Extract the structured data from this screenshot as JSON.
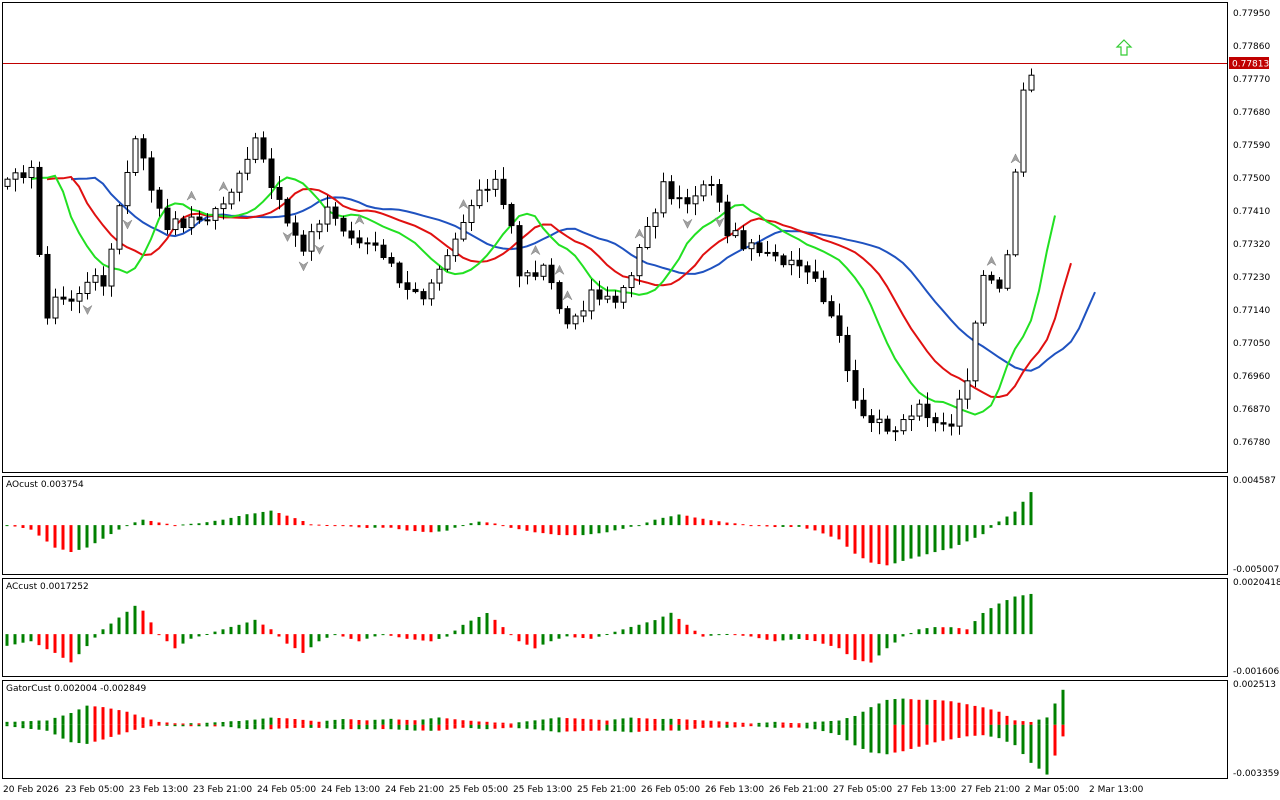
{
  "colors": {
    "background": "#ffffff",
    "frame": "#000000",
    "bull_body": "#ffffff",
    "bear_body": "#000000",
    "jaw": "#1f52c0",
    "teeth": "#e01010",
    "lips": "#22e022",
    "current_price_line": "#c00000",
    "current_price_tag": "#c00000",
    "histogram_up": "#008000",
    "histogram_down": "#ff0000",
    "buy_arrow": "#33cc33",
    "fractal": "#a0a0a0"
  },
  "price_axis": {
    "ticks": [
      "0.77950",
      "0.77860",
      "0.77770",
      "0.77680",
      "0.77590",
      "0.77500",
      "0.77410",
      "0.77320",
      "0.77230",
      "0.77140",
      "0.77050",
      "0.76960",
      "0.76870",
      "0.76780"
    ],
    "current_price": "0.77813"
  },
  "time_axis": {
    "labels": [
      "20 Feb 2026",
      "23 Feb 05:00",
      "23 Feb 13:00",
      "23 Feb 21:00",
      "24 Feb 05:00",
      "24 Feb 13:00",
      "24 Feb 21:00",
      "25 Feb 05:00",
      "25 Feb 13:00",
      "25 Feb 21:00",
      "26 Feb 05:00",
      "26 Feb 13:00",
      "26 Feb 21:00",
      "27 Feb 05:00",
      "27 Feb 13:00",
      "27 Feb 21:00",
      "2 Mar 05:00",
      "2 Mar 13:00"
    ]
  },
  "panels": {
    "ao": {
      "label": "AOcust 0.003754",
      "max": "0.004587",
      "min": "-0.005007"
    },
    "ac": {
      "label": "ACcust 0.0017252",
      "max": "0.0020418",
      "min": "-0.0016063"
    },
    "gator": {
      "label": "GatorCust 0.002004 -0.002849",
      "max": "0.002513",
      "min": "-0.003359"
    }
  },
  "chart_data": [
    {
      "type": "candlestick",
      "ylim": [
        0.7672,
        0.78
      ],
      "bars": 140,
      "close_path": [
        [
          0,
          0.7751
        ],
        [
          3,
          0.7756
        ],
        [
          4,
          0.773
        ],
        [
          5,
          0.7715
        ],
        [
          6,
          0.772
        ],
        [
          8,
          0.7718
        ],
        [
          10,
          0.7725
        ],
        [
          12,
          0.7723
        ],
        [
          14,
          0.7745
        ],
        [
          16,
          0.7765
        ],
        [
          18,
          0.775
        ],
        [
          20,
          0.774
        ],
        [
          22,
          0.774
        ],
        [
          25,
          0.7742
        ],
        [
          28,
          0.7748
        ],
        [
          31,
          0.7765
        ],
        [
          34,
          0.7745
        ],
        [
          37,
          0.7732
        ],
        [
          40,
          0.7745
        ],
        [
          43,
          0.7735
        ],
        [
          46,
          0.7735
        ],
        [
          49,
          0.7725
        ],
        [
          52,
          0.7718
        ],
        [
          55,
          0.773
        ],
        [
          58,
          0.7745
        ],
        [
          61,
          0.7753
        ],
        [
          63,
          0.774
        ],
        [
          64,
          0.7725
        ],
        [
          67,
          0.7727
        ],
        [
          70,
          0.7712
        ],
        [
          73,
          0.772
        ],
        [
          76,
          0.7718
        ],
        [
          78,
          0.7727
        ],
        [
          80,
          0.7738
        ],
        [
          82,
          0.775
        ],
        [
          85,
          0.7745
        ],
        [
          88,
          0.7752
        ],
        [
          90,
          0.7738
        ],
        [
          93,
          0.7733
        ],
        [
          96,
          0.773
        ],
        [
          99,
          0.773
        ],
        [
          101,
          0.7725
        ],
        [
          104,
          0.771
        ],
        [
          106,
          0.769
        ],
        [
          108,
          0.7686
        ],
        [
          110,
          0.7682
        ],
        [
          112,
          0.7686
        ],
        [
          114,
          0.769
        ],
        [
          116,
          0.7683
        ],
        [
          118,
          0.7684
        ],
        [
          120,
          0.7697
        ],
        [
          122,
          0.7725
        ],
        [
          124,
          0.7723
        ],
        [
          125,
          0.7732
        ],
        [
          126,
          0.7756
        ],
        [
          127,
          0.7776
        ],
        [
          128,
          0.7781
        ]
      ]
    },
    {
      "type": "histogram",
      "name": "AOcust",
      "ylim": [
        -0.005007,
        0.004587
      ],
      "path": [
        [
          0,
          0.0
        ],
        [
          3,
          -0.0005
        ],
        [
          6,
          -0.0025
        ],
        [
          8,
          -0.003
        ],
        [
          10,
          -0.0025
        ],
        [
          13,
          -0.001
        ],
        [
          15,
          0.0
        ],
        [
          17,
          0.0006
        ],
        [
          19,
          0.0003
        ],
        [
          21,
          0.0
        ],
        [
          24,
          0.0002
        ],
        [
          27,
          0.0006
        ],
        [
          30,
          0.0012
        ],
        [
          33,
          0.0016
        ],
        [
          36,
          0.0008
        ],
        [
          38,
          0.0001
        ],
        [
          42,
          -0.0001
        ],
        [
          45,
          -0.0003
        ],
        [
          48,
          -0.0003
        ],
        [
          50,
          -0.0006
        ],
        [
          53,
          -0.0008
        ],
        [
          55,
          -0.0006
        ],
        [
          57,
          0.0
        ],
        [
          59,
          0.0004
        ],
        [
          61,
          0.0002
        ],
        [
          63,
          -0.0003
        ],
        [
          66,
          -0.0008
        ],
        [
          69,
          -0.0011
        ],
        [
          72,
          -0.0011
        ],
        [
          75,
          -0.0008
        ],
        [
          77,
          -0.0004
        ],
        [
          79,
          0.0
        ],
        [
          81,
          0.0006
        ],
        [
          84,
          0.0012
        ],
        [
          87,
          0.0007
        ],
        [
          90,
          0.0003
        ],
        [
          93,
          0.0
        ],
        [
          96,
          -0.0002
        ],
        [
          99,
          -0.0002
        ],
        [
          101,
          -0.0006
        ],
        [
          104,
          -0.0016
        ],
        [
          106,
          -0.0032
        ],
        [
          108,
          -0.0042
        ],
        [
          110,
          -0.0045
        ],
        [
          112,
          -0.004
        ],
        [
          114,
          -0.0035
        ],
        [
          116,
          -0.003
        ],
        [
          118,
          -0.0026
        ],
        [
          120,
          -0.0018
        ],
        [
          122,
          -0.001
        ],
        [
          124,
          0.0004
        ],
        [
          126,
          0.0015
        ],
        [
          128,
          0.0037
        ]
      ]
    },
    {
      "type": "histogram",
      "name": "ACcust",
      "ylim": [
        -0.0016063,
        0.0020418
      ],
      "path": [
        [
          0,
          -0.0005
        ],
        [
          3,
          -0.0003
        ],
        [
          6,
          -0.0008
        ],
        [
          8,
          -0.0012
        ],
        [
          10,
          -0.0005
        ],
        [
          12,
          0.0002
        ],
        [
          14,
          0.0007
        ],
        [
          16,
          0.0012
        ],
        [
          17,
          0.001
        ],
        [
          19,
          0.0
        ],
        [
          21,
          -0.0006
        ],
        [
          23,
          -0.0002
        ],
        [
          25,
          0.0
        ],
        [
          28,
          0.0003
        ],
        [
          31,
          0.0006
        ],
        [
          33,
          0.0002
        ],
        [
          35,
          -0.0004
        ],
        [
          37,
          -0.0008
        ],
        [
          39,
          -0.0003
        ],
        [
          41,
          0.0
        ],
        [
          44,
          -0.0003
        ],
        [
          47,
          0.0
        ],
        [
          50,
          -0.0002
        ],
        [
          53,
          -0.0003
        ],
        [
          55,
          -0.0001
        ],
        [
          57,
          0.0004
        ],
        [
          60,
          0.0009
        ],
        [
          62,
          0.0003
        ],
        [
          64,
          -0.0003
        ],
        [
          66,
          -0.0006
        ],
        [
          68,
          -0.0003
        ],
        [
          70,
          -0.0001
        ],
        [
          73,
          -0.0002
        ],
        [
          75,
          0.0
        ],
        [
          78,
          0.0003
        ],
        [
          81,
          0.0006
        ],
        [
          83,
          0.0009
        ],
        [
          85,
          0.0004
        ],
        [
          87,
          -0.0001
        ],
        [
          90,
          0.0
        ],
        [
          93,
          -0.0001
        ],
        [
          96,
          -0.0003
        ],
        [
          99,
          -0.0002
        ],
        [
          101,
          -0.0003
        ],
        [
          104,
          -0.0006
        ],
        [
          106,
          -0.0011
        ],
        [
          108,
          -0.0012
        ],
        [
          110,
          -0.0006
        ],
        [
          112,
          -0.0001
        ],
        [
          114,
          0.0002
        ],
        [
          116,
          0.0003
        ],
        [
          118,
          0.0003
        ],
        [
          120,
          0.0002
        ],
        [
          122,
          0.0009
        ],
        [
          124,
          0.0013
        ],
        [
          126,
          0.0016
        ],
        [
          128,
          0.0017
        ]
      ]
    },
    {
      "type": "histogram",
      "name": "GatorCust",
      "ylim": [
        -0.003359,
        0.002513
      ],
      "upper_path": [
        [
          0,
          0.0002
        ],
        [
          5,
          0.0003
        ],
        [
          8,
          0.0008
        ],
        [
          10,
          0.0013
        ],
        [
          12,
          0.0012
        ],
        [
          15,
          0.0009
        ],
        [
          17,
          0.0005
        ],
        [
          19,
          0.0002
        ],
        [
          21,
          0.0001
        ],
        [
          24,
          0.0001
        ],
        [
          27,
          0.0002
        ],
        [
          30,
          0.0003
        ],
        [
          33,
          0.0005
        ],
        [
          36,
          0.0004
        ],
        [
          39,
          0.0002
        ],
        [
          42,
          0.0004
        ],
        [
          45,
          0.0003
        ],
        [
          48,
          0.0004
        ],
        [
          51,
          0.0003
        ],
        [
          54,
          0.0005
        ],
        [
          57,
          0.0003
        ],
        [
          60,
          0.0002
        ],
        [
          63,
          0.0001
        ],
        [
          66,
          0.0003
        ],
        [
          69,
          0.0005
        ],
        [
          72,
          0.0004
        ],
        [
          75,
          0.0003
        ],
        [
          78,
          0.0005
        ],
        [
          81,
          0.0004
        ],
        [
          84,
          0.0004
        ],
        [
          87,
          0.0003
        ],
        [
          90,
          0.0002
        ],
        [
          93,
          0.0001
        ],
        [
          96,
          0.0002
        ],
        [
          99,
          0.0001
        ],
        [
          101,
          0.0002
        ],
        [
          104,
          0.0003
        ],
        [
          106,
          0.0006
        ],
        [
          108,
          0.0012
        ],
        [
          110,
          0.0017
        ],
        [
          112,
          0.0018
        ],
        [
          114,
          0.0017
        ],
        [
          116,
          0.0017
        ],
        [
          118,
          0.0016
        ],
        [
          120,
          0.0014
        ],
        [
          122,
          0.0012
        ],
        [
          124,
          0.0009
        ],
        [
          126,
          0.0003
        ],
        [
          128,
          0.0002
        ],
        [
          130,
          0.0005
        ],
        [
          132,
          0.0024
        ]
      ],
      "lower_path": [
        [
          0,
          -0.0001
        ],
        [
          5,
          -0.0004
        ],
        [
          8,
          -0.0012
        ],
        [
          10,
          -0.0013
        ],
        [
          12,
          -0.001
        ],
        [
          15,
          -0.0005
        ],
        [
          17,
          -0.0002
        ],
        [
          19,
          0.0
        ],
        [
          21,
          -0.0001
        ],
        [
          24,
          -0.0001
        ],
        [
          27,
          -0.0001
        ],
        [
          30,
          -0.0003
        ],
        [
          33,
          -0.0003
        ],
        [
          36,
          -0.0002
        ],
        [
          39,
          -0.0002
        ],
        [
          42,
          -0.0003
        ],
        [
          45,
          -0.0003
        ],
        [
          48,
          -0.0003
        ],
        [
          51,
          -0.0004
        ],
        [
          54,
          -0.0004
        ],
        [
          57,
          -0.0002
        ],
        [
          60,
          -0.0003
        ],
        [
          63,
          -0.0002
        ],
        [
          66,
          -0.0003
        ],
        [
          69,
          -0.0005
        ],
        [
          72,
          -0.0004
        ],
        [
          75,
          -0.0004
        ],
        [
          78,
          -0.0005
        ],
        [
          81,
          -0.0004
        ],
        [
          84,
          -0.0004
        ],
        [
          87,
          -0.0002
        ],
        [
          90,
          -0.0002
        ],
        [
          93,
          -0.0001
        ],
        [
          96,
          -0.0002
        ],
        [
          99,
          -0.0002
        ],
        [
          101,
          -0.0003
        ],
        [
          104,
          -0.0007
        ],
        [
          106,
          -0.0014
        ],
        [
          108,
          -0.0019
        ],
        [
          110,
          -0.002
        ],
        [
          112,
          -0.0018
        ],
        [
          114,
          -0.0015
        ],
        [
          116,
          -0.0012
        ],
        [
          118,
          -0.001
        ],
        [
          120,
          -0.0008
        ],
        [
          122,
          -0.0007
        ],
        [
          124,
          -0.0009
        ],
        [
          126,
          -0.0014
        ],
        [
          128,
          -0.0026
        ],
        [
          130,
          -0.0034
        ],
        [
          132,
          -0.0008
        ]
      ]
    }
  ]
}
